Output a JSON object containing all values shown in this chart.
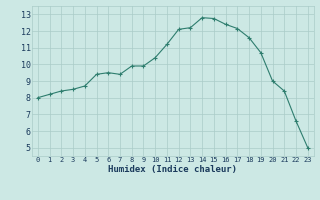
{
  "x": [
    0,
    1,
    2,
    3,
    4,
    5,
    6,
    7,
    8,
    9,
    10,
    11,
    12,
    13,
    14,
    15,
    16,
    17,
    18,
    19,
    20,
    21,
    22,
    23
  ],
  "y": [
    8.0,
    8.2,
    8.4,
    8.5,
    8.7,
    9.4,
    9.5,
    9.4,
    9.9,
    9.9,
    10.4,
    11.2,
    12.1,
    12.2,
    12.8,
    12.75,
    12.4,
    12.15,
    11.6,
    10.7,
    9.0,
    8.4,
    6.6,
    5.0
  ],
  "xlabel": "Humidex (Indice chaleur)",
  "xlim": [
    -0.5,
    23.5
  ],
  "ylim": [
    4.5,
    13.5
  ],
  "yticks": [
    5,
    6,
    7,
    8,
    9,
    10,
    11,
    12,
    13
  ],
  "xticks": [
    0,
    1,
    2,
    3,
    4,
    5,
    6,
    7,
    8,
    9,
    10,
    11,
    12,
    13,
    14,
    15,
    16,
    17,
    18,
    19,
    20,
    21,
    22,
    23
  ],
  "line_color": "#2e7d6e",
  "marker": "+",
  "bg_color": "#cce8e4",
  "grid_color": "#aaccc8",
  "xlabel_color": "#1a3a5c",
  "tick_color": "#1a3a5c"
}
